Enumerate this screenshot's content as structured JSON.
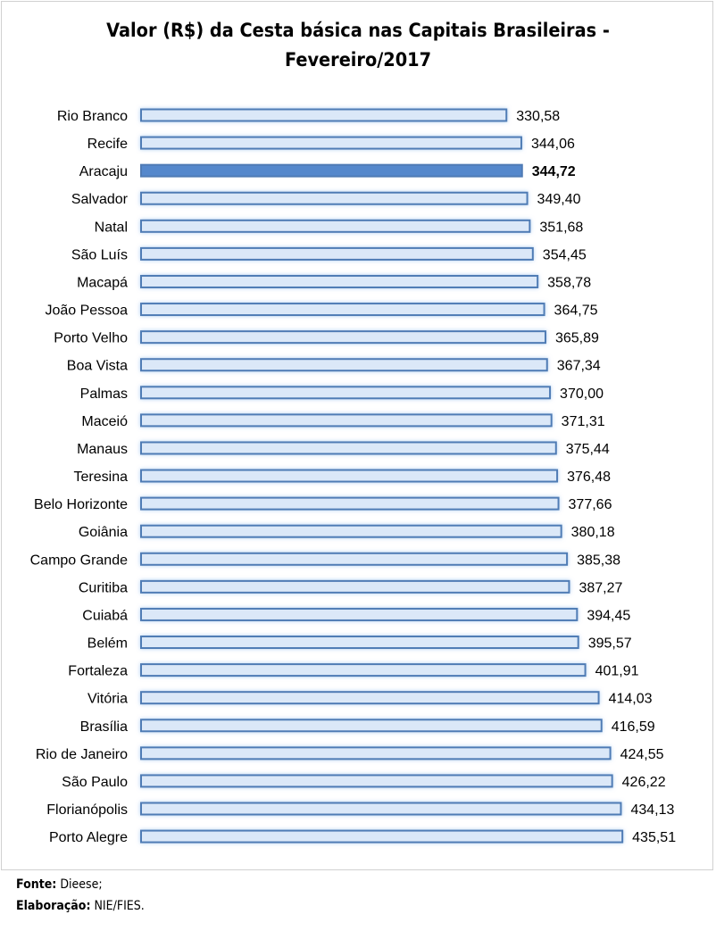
{
  "chart_data": {
    "type": "bar",
    "orientation": "horizontal",
    "title_line1": "Valor (R$) da Cesta básica nas Capitais Brasileiras -",
    "title_line2": "Fevereiro/2017",
    "categories": [
      "Rio Branco",
      "Recife",
      "Aracaju",
      "Salvador",
      "Natal",
      "São Luís",
      "Macapá",
      "João Pessoa",
      "Porto Velho",
      "Boa Vista",
      "Palmas",
      "Maceió",
      "Manaus",
      "Teresina",
      "Belo Horizonte",
      "Goiânia",
      "Campo Grande",
      "Curitiba",
      "Cuiabá",
      "Belém",
      "Fortaleza",
      "Vitória",
      "Brasília",
      "Rio de Janeiro",
      "São Paulo",
      "Florianópolis",
      "Porto Alegre"
    ],
    "values": [
      330.58,
      344.06,
      344.72,
      349.4,
      351.68,
      354.45,
      358.78,
      364.75,
      365.89,
      367.34,
      370.0,
      371.31,
      375.44,
      376.48,
      377.66,
      380.18,
      385.38,
      387.27,
      394.45,
      395.57,
      401.91,
      414.03,
      416.59,
      424.55,
      426.22,
      434.13,
      435.51
    ],
    "data_labels": [
      "330,58",
      "344,06",
      "344,72",
      "349,40",
      "351,68",
      "354,45",
      "358,78",
      "364,75",
      "365,89",
      "367,34",
      "370,00",
      "371,31",
      "375,44",
      "376,48",
      "377,66",
      "380,18",
      "385,38",
      "387,27",
      "394,45",
      "395,57",
      "401,91",
      "414,03",
      "416,59",
      "424,55",
      "426,22",
      "434,13",
      "435,51"
    ],
    "highlight": "Aracaju",
    "xlabel": "",
    "ylabel": "",
    "xlim": [
      0,
      500
    ],
    "grid": false,
    "legend": "none",
    "colors": {
      "bar_fill": "#dbe8f8",
      "bar_stroke": "#4f7bb5",
      "highlight_fill": "#5588cc"
    }
  },
  "footer": {
    "source_label": "Fonte:",
    "source_value": "Dieese;",
    "made_label": "Elaboração:",
    "made_value": "NIE/FIES."
  }
}
